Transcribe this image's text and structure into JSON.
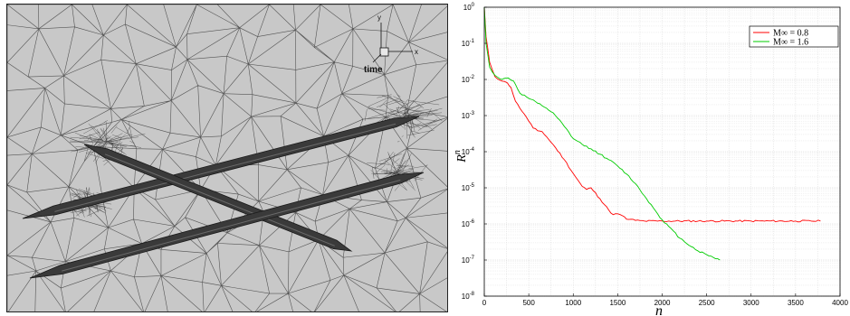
{
  "figure_left": {
    "axis_labels": {
      "x": "x",
      "y": "y"
    },
    "time_label": "time",
    "colors": {
      "background": "#c8c8c8",
      "mesh": "#555555",
      "body": "#3a3a3a"
    }
  },
  "chart_data": {
    "type": "line",
    "xlabel": "n",
    "ylabel_base": "R",
    "ylabel_sup": "n",
    "xlim": [
      0,
      4000
    ],
    "ylim_log10": [
      -8,
      0
    ],
    "x_ticks": [
      "0",
      "500",
      "1000",
      "1500",
      "2000",
      "2500",
      "3000",
      "3500",
      "4000"
    ],
    "x_tick_values": [
      0,
      500,
      1000,
      1500,
      2000,
      2500,
      3000,
      3500,
      4000
    ],
    "y_ticks": [
      {
        "base": "10",
        "exp": "0"
      },
      {
        "base": "10",
        "exp": "-1"
      },
      {
        "base": "10",
        "exp": "-2"
      },
      {
        "base": "10",
        "exp": "-3"
      },
      {
        "base": "10",
        "exp": "-4"
      },
      {
        "base": "10",
        "exp": "-5"
      },
      {
        "base": "10",
        "exp": "-6"
      },
      {
        "base": "10",
        "exp": "-7"
      },
      {
        "base": "10",
        "exp": "-8"
      }
    ],
    "y_tick_exponents": [
      0,
      -1,
      -2,
      -3,
      -4,
      -5,
      -6,
      -7,
      -8
    ],
    "grid": true,
    "legend_position": "top-right",
    "series": [
      {
        "name": "M∞ = 0.8",
        "color": "#ff0000",
        "x": [
          0,
          20,
          60,
          120,
          200,
          260,
          300,
          350,
          400,
          450,
          500,
          550,
          600,
          650,
          700,
          800,
          900,
          1000,
          1100,
          1150,
          1200,
          1300,
          1400,
          1450,
          1500,
          1550,
          1600,
          1650,
          1700,
          1800,
          2000,
          2500,
          3000,
          3500,
          3780
        ],
        "y": [
          1.0,
          0.15,
          0.03,
          0.012,
          0.009,
          0.008,
          0.006,
          0.0025,
          0.0016,
          0.0011,
          0.0007,
          0.00045,
          0.00038,
          0.00036,
          0.00026,
          0.00013,
          6e-05,
          2.5e-05,
          1.1e-05,
          9e-06,
          1e-05,
          5e-06,
          2.4e-06,
          1.8e-06,
          1.9e-06,
          1.7e-06,
          1.35e-06,
          1.35e-06,
          1.25e-06,
          1.2e-06,
          1.2e-06,
          1.2e-06,
          1.2e-06,
          1.2e-06,
          1.2e-06
        ]
      },
      {
        "name": "M∞ = 1.6",
        "color": "#00cc00",
        "x": [
          0,
          20,
          60,
          120,
          200,
          270,
          330,
          400,
          500,
          600,
          700,
          800,
          900,
          1000,
          1100,
          1200,
          1300,
          1400,
          1500,
          1600,
          1700,
          1800,
          1900,
          2000,
          2200,
          2400,
          2650
        ],
        "y": [
          1.0,
          0.1,
          0.022,
          0.013,
          0.01,
          0.011,
          0.009,
          0.0042,
          0.003,
          0.0022,
          0.0016,
          0.001,
          0.0005,
          0.00023,
          0.00016,
          0.00012,
          8.5e-05,
          6e-05,
          4e-05,
          2.4e-05,
          1.3e-05,
          6e-06,
          2.8e-06,
          1.3e-06,
          4e-07,
          1.8e-07,
          1e-07
        ]
      }
    ]
  }
}
